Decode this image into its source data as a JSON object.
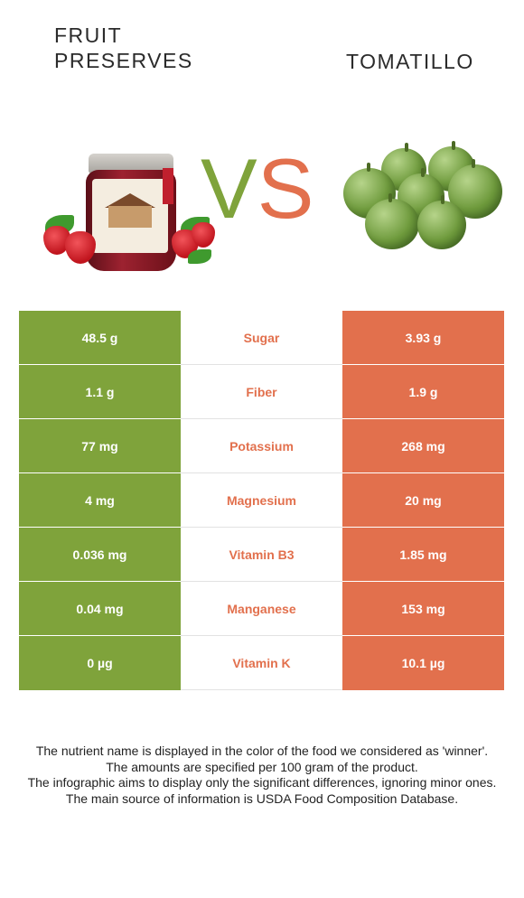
{
  "left_food": {
    "title": "FRUIT\nPRESERVES",
    "image_icon": "fruit-preserves-jar-image",
    "color": "#7fa33b"
  },
  "right_food": {
    "title": "TOMATILLO",
    "image_icon": "tomatillo-image",
    "color": "#e2704d"
  },
  "vs": {
    "v": "V",
    "s": "S"
  },
  "rows": [
    {
      "nutrient": "Sugar",
      "left": "48.5 g",
      "right": "3.93 g"
    },
    {
      "nutrient": "Fiber",
      "left": "1.1 g",
      "right": "1.9 g"
    },
    {
      "nutrient": "Potassium",
      "left": "77 mg",
      "right": "268 mg"
    },
    {
      "nutrient": "Magnesium",
      "left": "4 mg",
      "right": "20 mg"
    },
    {
      "nutrient": "Vitamin B3",
      "left": "0.036 mg",
      "right": "1.85 mg"
    },
    {
      "nutrient": "Manganese",
      "left": "0.04 mg",
      "right": "153 mg"
    },
    {
      "nutrient": "Vitamin K",
      "left": "0 µg",
      "right": "10.1 µg"
    }
  ],
  "footer": {
    "line1": "The nutrient name is displayed in the color of the food we considered as 'winner'.",
    "line2": "The amounts are specified per 100 gram of the product.",
    "line3": "The infographic aims to display only the significant differences, ignoring minor ones.",
    "line4": "The main source of information is USDA Food Composition Database."
  }
}
